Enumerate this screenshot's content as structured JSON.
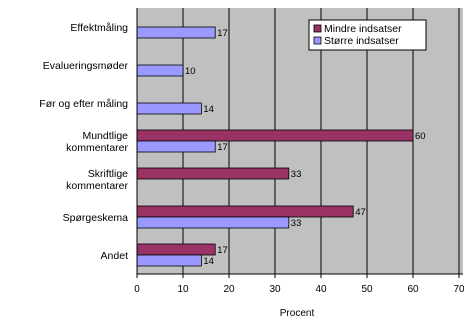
{
  "chart_data": {
    "type": "bar",
    "orientation": "horizontal",
    "xlabel": "Procent",
    "xlim": [
      0,
      70
    ],
    "xticks": [
      0,
      10,
      20,
      30,
      40,
      50,
      60,
      70
    ],
    "xtick_labels": [
      "0",
      "10",
      "20",
      "30",
      "40",
      "50",
      "60",
      "70"
    ],
    "grid": "vertical",
    "legend_position": "top-right",
    "categories": [
      [
        "Effektmåling"
      ],
      [
        "Evalueringsmøder"
      ],
      [
        "Før og efter måling"
      ],
      [
        "Mundtlige",
        "kommentarer"
      ],
      [
        "Skriftlige",
        "kommentarer"
      ],
      [
        "Spørgeskema"
      ],
      [
        "Andet"
      ]
    ],
    "series": [
      {
        "name": "Mindre indsatser",
        "color": "#993366",
        "values": [
          null,
          null,
          null,
          60,
          33,
          47,
          17
        ],
        "labels": [
          "",
          "",
          "",
          "60",
          "33",
          "47",
          "17"
        ]
      },
      {
        "name": "Større indsatser",
        "color": "#9999ff",
        "values": [
          17,
          10,
          14,
          17,
          null,
          33,
          14
        ],
        "labels": [
          "17",
          "10",
          "14",
          "17",
          "",
          "33",
          "14"
        ]
      }
    ],
    "plot_background": "#c0c0c0"
  }
}
